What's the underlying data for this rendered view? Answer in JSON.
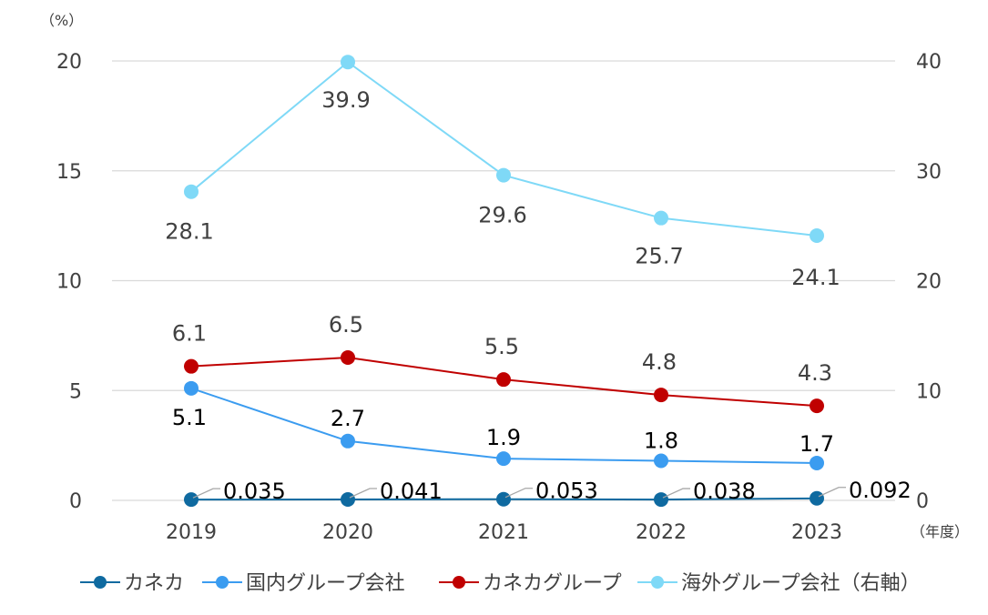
{
  "chart_data": {
    "type": "line",
    "categories": [
      "2019",
      "2020",
      "2021",
      "2022",
      "2023"
    ],
    "left_axis": {
      "unit": "（%）",
      "ticks": [
        "0",
        "5",
        "10",
        "15",
        "20"
      ],
      "ylim": [
        0,
        20
      ]
    },
    "right_axis": {
      "ticks": [
        "0",
        "10",
        "20",
        "30",
        "40"
      ],
      "ylim": [
        0,
        40
      ]
    },
    "x_unit": "（年度）",
    "grid": true,
    "legend_position": "bottom",
    "series": [
      {
        "name": "カネカ",
        "axis": "left",
        "color": "#0f6aa0",
        "values": [
          0.035,
          0.041,
          0.053,
          0.038,
          0.092
        ],
        "labels": [
          "0.035",
          "0.041",
          "0.053",
          "0.038",
          "0.092"
        ]
      },
      {
        "name": "国内グループ会社",
        "axis": "left",
        "color": "#3b9cf0",
        "values": [
          5.1,
          2.7,
          1.9,
          1.8,
          1.7
        ],
        "labels": [
          "5.1",
          "2.7",
          "1.9",
          "1.8",
          "1.7"
        ]
      },
      {
        "name": "カネカグループ",
        "axis": "left",
        "color": "#c00000",
        "values": [
          6.1,
          6.5,
          5.5,
          4.8,
          4.3
        ],
        "labels": [
          "6.1",
          "6.5",
          "5.5",
          "4.8",
          "4.3"
        ]
      },
      {
        "name": "海外グループ会社（右軸）",
        "axis": "right",
        "color": "#7fd9f7",
        "values": [
          28.1,
          39.9,
          29.6,
          25.7,
          24.1
        ],
        "labels": [
          "28.1",
          "39.9",
          "29.6",
          "25.7",
          "24.1"
        ]
      }
    ]
  }
}
